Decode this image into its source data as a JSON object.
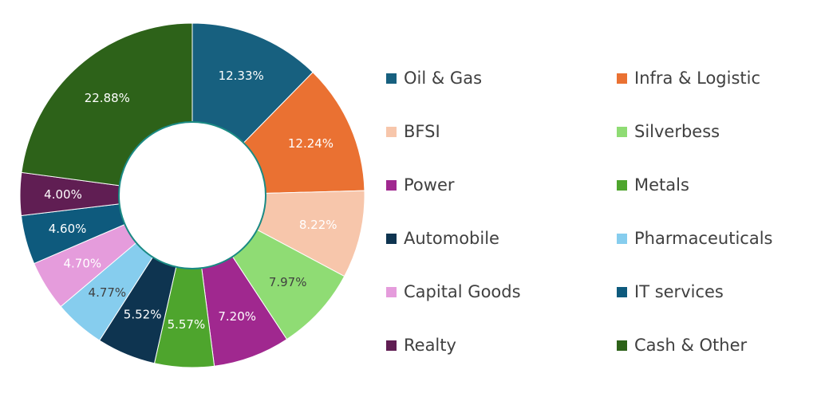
{
  "chart_data": {
    "type": "pie",
    "donut": true,
    "categories": [
      "Oil & Gas",
      "Infra & Logistic",
      "BFSI",
      "Silverbess",
      "Power",
      "Metals",
      "Automobile",
      "Pharmaceuticals",
      "Capital Goods",
      "IT services",
      "Realty",
      "Cash & Other"
    ],
    "values": [
      12.33,
      12.24,
      8.22,
      7.97,
      7.2,
      5.57,
      5.52,
      4.77,
      4.7,
      4.6,
      4.0,
      22.88
    ],
    "data_labels": [
      "12.33%",
      "12.24%",
      "8.22%",
      "7.97%",
      "7.20%",
      "5.57%",
      "5.52%",
      "4.77%",
      "4.70%",
      "4.60%",
      "4.00%",
      "22.88%"
    ],
    "colors": [
      "#17607f",
      "#ea7132",
      "#f7c6ab",
      "#8fdc74",
      "#a0288f",
      "#4ea52d",
      "#0e3450",
      "#86cdee",
      "#e59cdc",
      "#0e5a7d",
      "#601e53",
      "#2d6219"
    ],
    "label_colors": [
      "#ffffff",
      "#ffffff",
      "#ffffff",
      "#404040",
      "#ffffff",
      "#ffffff",
      "#ffffff",
      "#404040",
      "#ffffff",
      "#ffffff",
      "#ffffff",
      "#ffffff"
    ],
    "legend_position": "right",
    "title": ""
  }
}
